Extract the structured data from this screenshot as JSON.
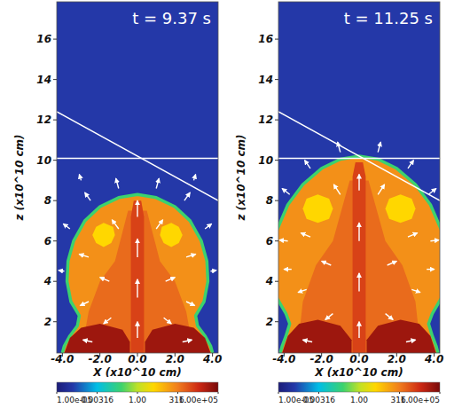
{
  "chart_data": [
    {
      "type": "heatmap",
      "title": "t = 9.37 s",
      "x_label": "X (x10^10 cm)",
      "y_label": "z (x10^10 cm)",
      "xlim": [
        -4.3,
        4.3
      ],
      "ylim": [
        0.45,
        17.85
      ],
      "xticks": [
        {
          "value": -4,
          "label": "-4.0"
        },
        {
          "value": -2,
          "label": "-2.0"
        },
        {
          "value": 0,
          "label": "0.0"
        },
        {
          "value": 2,
          "label": "2.0"
        },
        {
          "value": 4,
          "label": "4.0"
        }
      ],
      "yticks": [
        2,
        4,
        6,
        8,
        10,
        12,
        14,
        16
      ],
      "grid": false,
      "colorbar": {
        "range": [
          1e-05,
          100000
        ],
        "log": true,
        "ticks": [
          {
            "value": 1e-05,
            "label": "1.00e-05"
          },
          0.00316,
          {
            "value": 1,
            "label": "1.00"
          },
          {
            "value": 316,
            "label": "316."
          },
          {
            "value": 100000,
            "label": "1.00e+05"
          }
        ]
      },
      "background_value": 0.0001,
      "regions": [
        {
          "x": [
            -4.0,
            -3.9,
            -3.6,
            -3.2,
            -3.1,
            -3.55,
            -3.75,
            -3.7,
            -3.4,
            -2.8,
            -2.0,
            -1.0,
            0,
            1.0,
            2.0,
            2.8,
            3.4,
            3.7,
            3.75,
            3.55,
            3.1,
            3.2,
            3.6,
            3.9,
            4.0
          ],
          "z": [
            0.45,
            0.8,
            1.3,
            1.8,
            2.3,
            3.0,
            4.0,
            5.0,
            6.0,
            7.0,
            7.7,
            8.15,
            8.3,
            8.15,
            7.7,
            7.0,
            6.0,
            5.0,
            4.0,
            3.0,
            2.3,
            1.8,
            1.3,
            0.8,
            0.45
          ],
          "value": 150,
          "edge_value": 0.1
        },
        {
          "x": [
            -3.0,
            -2.6,
            -2.0,
            -1.2,
            -0.5,
            0.5,
            1.2,
            2.0,
            2.6,
            3.0
          ],
          "z": [
            0.45,
            2.5,
            4.0,
            5.0,
            7.5,
            7.5,
            5.0,
            4.0,
            2.5,
            0.45
          ],
          "value": 600
        },
        {
          "x": [
            -2.4,
            -2.2,
            -1.8,
            -1.3,
            -1.2,
            -1.4,
            -1.8,
            -2.2
          ],
          "z": [
            6.3,
            6.7,
            6.9,
            6.7,
            6.3,
            5.9,
            5.7,
            5.9
          ],
          "value": 10
        },
        {
          "x": [
            2.4,
            2.2,
            1.8,
            1.3,
            1.2,
            1.4,
            1.8,
            2.2
          ],
          "z": [
            6.3,
            6.7,
            6.9,
            6.7,
            6.3,
            5.9,
            5.7,
            5.9
          ],
          "value": 10
        },
        {
          "x": [
            -0.35,
            -0.35,
            -0.2,
            0.2,
            0.35,
            0.35
          ],
          "z": [
            0.45,
            7.2,
            8.0,
            8.0,
            7.2,
            0.45
          ],
          "value": 2500
        },
        {
          "x": [
            -3.9,
            -3.6,
            -3.0,
            -2.0,
            -0.8,
            -0.4,
            -0.4
          ],
          "z": [
            0.45,
            1.2,
            1.7,
            1.9,
            1.6,
            1.0,
            0.45
          ],
          "value": 30000
        },
        {
          "x": [
            3.9,
            3.6,
            3.0,
            2.0,
            0.8,
            0.4,
            0.4
          ],
          "z": [
            0.45,
            1.2,
            1.7,
            1.9,
            1.6,
            1.0,
            0.45
          ],
          "value": 30000
        }
      ],
      "lines": [
        {
          "x": [
            -4.3,
            4.3
          ],
          "z": [
            10.1,
            10.1
          ]
        },
        {
          "x": [
            -4.3,
            4.3
          ],
          "z": [
            12.4,
            8.0
          ]
        }
      ],
      "vectors": {
        "x": [
          0,
          0,
          0,
          0,
          -1,
          1,
          -2.5,
          2.5,
          -3.6,
          3.6,
          -3.9,
          3.9,
          -1.0,
          1.0,
          -2.6,
          2.6,
          -1.5,
          1.5,
          -2.6,
          2.6,
          -1.4,
          1.4,
          -2.4,
          2.4,
          -3.0,
          3.0
        ],
        "z": [
          1.2,
          3.2,
          5.2,
          7.2,
          8.6,
          8.6,
          8.0,
          8.0,
          6.6,
          6.6,
          4.5,
          4.5,
          6.6,
          6.6,
          5.2,
          5.2,
          4.0,
          4.0,
          3.0,
          3.0,
          2.2,
          2.2,
          1.0,
          1.0,
          9.0,
          9.0
        ],
        "u": [
          0,
          0,
          0,
          0,
          -0.15,
          0.15,
          -0.3,
          0.3,
          -0.35,
          0.35,
          -0.3,
          0.3,
          -0.35,
          0.35,
          -0.5,
          0.5,
          -0.5,
          0.5,
          -0.45,
          0.45,
          -0.4,
          0.4,
          -0.5,
          0.5,
          -0.1,
          0.1
        ],
        "w": [
          0.8,
          0.9,
          0.9,
          0.8,
          0.5,
          0.5,
          0.4,
          0.4,
          0.25,
          0.25,
          0.05,
          0.05,
          0.45,
          0.45,
          0.15,
          0.15,
          0.2,
          0.2,
          -0.2,
          -0.2,
          -0.3,
          -0.3,
          0.1,
          0.1,
          0.3,
          0.3
        ]
      }
    },
    {
      "type": "heatmap",
      "title": "t = 11.25 s",
      "x_label": "X (x10^10 cm)",
      "y_label": "z (x10^10 cm)",
      "xlim": [
        -4.3,
        4.3
      ],
      "ylim": [
        0.45,
        17.85
      ],
      "xticks": [
        {
          "value": -4,
          "label": "-4.0"
        },
        {
          "value": -2,
          "label": "-2.0"
        },
        {
          "value": 0,
          "label": "0.0"
        },
        {
          "value": 2,
          "label": "2.0"
        },
        {
          "value": 4,
          "label": "4.0"
        }
      ],
      "yticks": [
        2,
        4,
        6,
        8,
        10,
        12,
        14,
        16
      ],
      "grid": false,
      "colorbar": {
        "range": [
          1e-05,
          100000
        ],
        "log": true,
        "ticks": [
          {
            "value": 1e-05,
            "label": "1.00e-05"
          },
          0.00316,
          {
            "value": 1,
            "label": "1.00"
          },
          {
            "value": 316,
            "label": "316."
          },
          {
            "value": 100000,
            "label": "1.00e+05"
          }
        ]
      },
      "background_value": 0.0001,
      "regions": [
        {
          "x": [
            -4.2,
            -4.1,
            -3.9,
            -3.7,
            -3.9,
            -4.4,
            -4.4,
            -3.8,
            -3.0,
            -2.0,
            -1.0,
            0,
            1.0,
            2.0,
            3.0,
            3.8,
            4.4,
            4.4,
            3.9,
            3.7,
            3.9,
            4.1,
            4.2
          ],
          "z": [
            0.45,
            0.8,
            1.3,
            1.9,
            2.4,
            3.2,
            6.5,
            7.8,
            8.8,
            9.6,
            10.05,
            10.2,
            10.05,
            9.6,
            8.8,
            7.8,
            6.5,
            3.2,
            2.4,
            1.9,
            1.3,
            0.8,
            0.45
          ],
          "value": 150,
          "edge_value": 0.1
        },
        {
          "x": [
            -3.3,
            -3.0,
            -2.3,
            -1.4,
            -0.5,
            0.5,
            1.4,
            2.3,
            3.0,
            3.3
          ],
          "z": [
            0.45,
            3.0,
            4.8,
            6.0,
            9.0,
            9.0,
            6.0,
            4.8,
            3.0,
            0.45
          ],
          "value": 600
        },
        {
          "x": [
            -3.0,
            -2.8,
            -2.2,
            -1.6,
            -1.4,
            -1.6,
            -2.2,
            -2.8
          ],
          "z": [
            7.6,
            8.1,
            8.3,
            8.1,
            7.6,
            7.1,
            6.9,
            7.1
          ],
          "value": 10
        },
        {
          "x": [
            3.0,
            2.8,
            2.2,
            1.6,
            1.4,
            1.6,
            2.2,
            2.8
          ],
          "z": [
            7.6,
            8.1,
            8.3,
            8.1,
            7.6,
            7.1,
            6.9,
            7.1
          ],
          "value": 10
        },
        {
          "x": [
            -0.35,
            -0.35,
            -0.2,
            0.2,
            0.35,
            0.35
          ],
          "z": [
            0.45,
            9.2,
            9.9,
            9.9,
            9.2,
            0.45
          ],
          "value": 2500
        },
        {
          "x": [
            -4.1,
            -3.8,
            -3.2,
            -2.2,
            -1.0,
            -0.4,
            -0.4
          ],
          "z": [
            0.45,
            1.3,
            1.9,
            2.1,
            1.8,
            1.1,
            0.45
          ],
          "value": 30000
        },
        {
          "x": [
            4.1,
            3.8,
            3.2,
            2.2,
            1.0,
            0.4,
            0.4
          ],
          "z": [
            0.45,
            1.3,
            1.9,
            2.1,
            1.8,
            1.1,
            0.45
          ],
          "value": 30000
        }
      ],
      "lines": [
        {
          "x": [
            -4.3,
            4.3
          ],
          "z": [
            10.1,
            10.1
          ]
        },
        {
          "x": [
            -4.3,
            4.3
          ],
          "z": [
            12.4,
            8.0
          ]
        }
      ],
      "vectors": {
        "x": [
          0,
          0,
          0,
          0,
          -1,
          1,
          -2.6,
          2.6,
          -3.7,
          3.7,
          -3.8,
          3.8,
          -1.0,
          1.0,
          -2.6,
          2.6,
          -1.5,
          1.5,
          -2.8,
          2.8,
          -1.4,
          1.4,
          -2.5,
          2.5,
          -3.6,
          3.6
        ],
        "z": [
          1.2,
          3.5,
          6.0,
          8.5,
          10.4,
          10.4,
          9.6,
          9.6,
          8.3,
          8.3,
          6.0,
          6.0,
          8.3,
          8.3,
          6.2,
          6.2,
          4.8,
          4.8,
          3.6,
          3.6,
          2.4,
          2.4,
          1.0,
          1.0,
          4.6,
          4.6
        ],
        "u": [
          0,
          0,
          0,
          0,
          -0.15,
          0.15,
          -0.3,
          0.3,
          -0.4,
          0.4,
          -0.45,
          0.45,
          -0.35,
          0.35,
          -0.5,
          0.5,
          -0.5,
          0.5,
          -0.45,
          0.45,
          -0.4,
          0.4,
          -0.5,
          0.5,
          -0.4,
          0.4
        ],
        "w": [
          0.8,
          0.9,
          0.9,
          0.8,
          0.5,
          0.5,
          0.4,
          0.4,
          0.3,
          0.3,
          0.05,
          0.05,
          0.5,
          0.5,
          0.2,
          0.2,
          0.2,
          0.2,
          -0.15,
          -0.15,
          -0.3,
          -0.3,
          0.1,
          0.1,
          0,
          0
        ]
      }
    }
  ]
}
